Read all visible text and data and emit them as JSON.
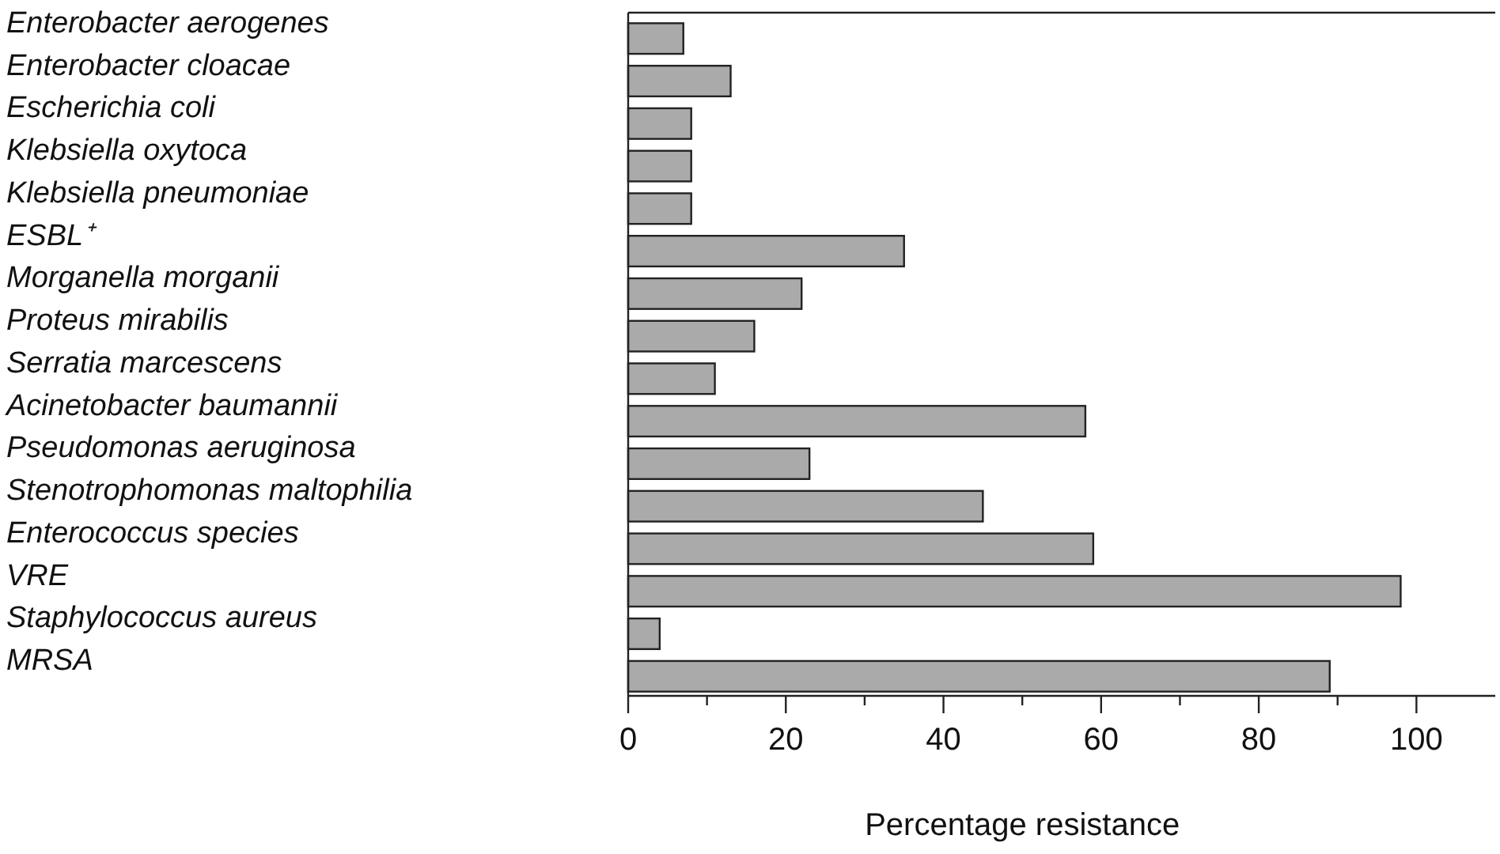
{
  "chart_data": {
    "type": "bar",
    "orientation": "horizontal",
    "xlabel": "Percentage resistance",
    "categories": [
      "Enterobacter aerogenes",
      "Enterobacter cloacae",
      "Escherichia coli",
      "Klebsiella oxytoca",
      "Klebsiella pneumoniae",
      "ESBL⁺",
      "Morganella morganii",
      "Proteus mirabilis",
      "Serratia marcescens",
      "Acinetobacter baumannii",
      "Pseudomonas aeruginosa",
      "Stenotrophomonas maltophilia",
      "Enterococcus species",
      "VRE",
      "Staphylococcus aureus",
      "MRSA"
    ],
    "values": [
      7,
      13,
      8,
      8,
      8,
      35,
      22,
      16,
      11,
      58,
      23,
      45,
      59,
      98,
      4,
      89
    ],
    "color": "#aaaaaa",
    "xlim": [
      0,
      110
    ],
    "xticks": [
      0,
      {
        "value": 10,
        "label": null
      },
      20,
      {
        "value": 30,
        "label": null
      },
      40,
      {
        "value": 50,
        "label": null
      },
      60,
      {
        "value": 70,
        "label": null
      },
      80,
      {
        "value": 90,
        "label": null
      },
      100
    ],
    "grid": false
  }
}
